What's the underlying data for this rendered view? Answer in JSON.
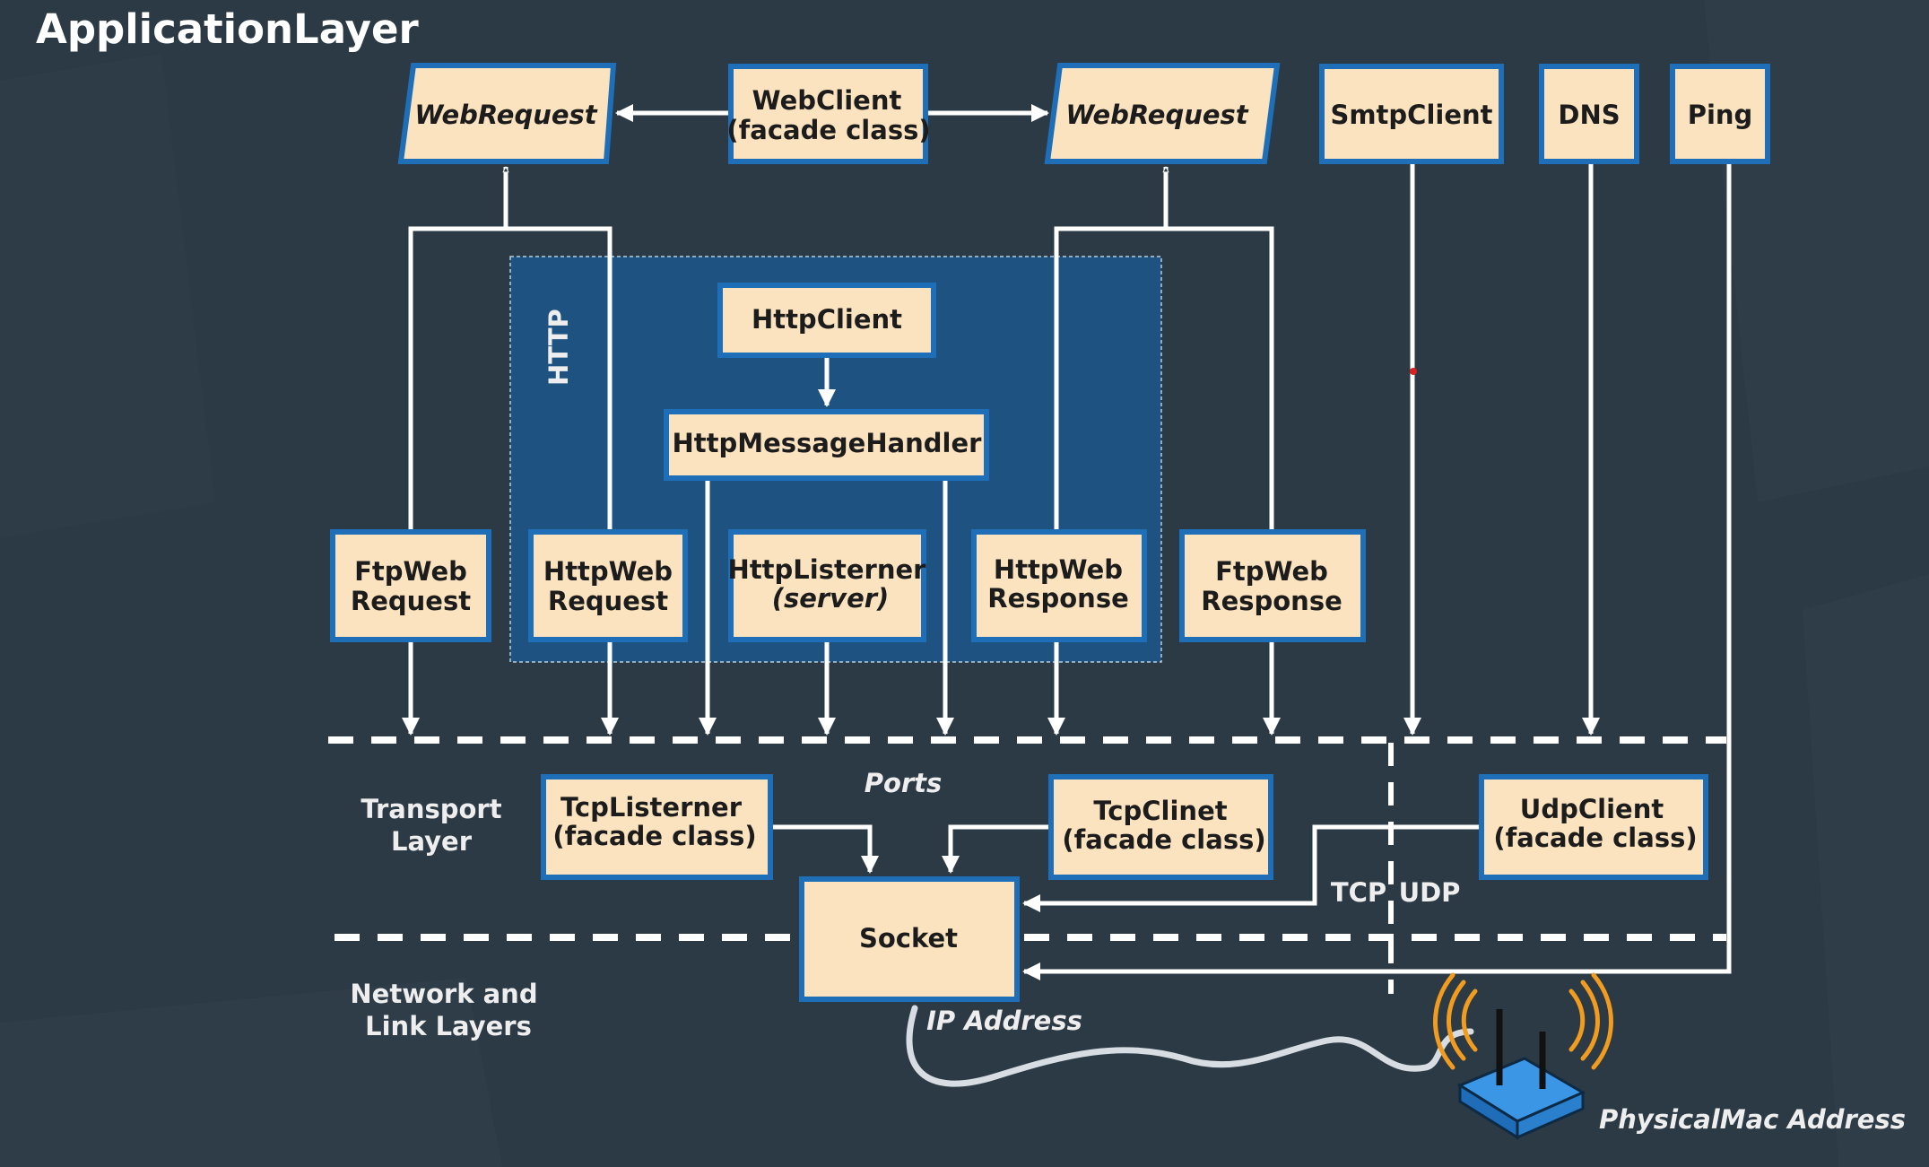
{
  "title": "ApplicationLayer",
  "http_group_label": "HTTP",
  "boxes": {
    "webrequest_left": "WebRequest",
    "webclient": [
      "WebClient",
      "(facade class)"
    ],
    "webrequest_right": "WebRequest",
    "smtpclient": "SmtpClient",
    "dns": "DNS",
    "ping": "Ping",
    "httpclient": "HttpClient",
    "httpmessagehandler": "HttpMessageHandler",
    "ftpwebrequest": [
      "FtpWeb",
      "Request"
    ],
    "httpwebrequest": [
      "HttpWeb",
      "Request"
    ],
    "httplistener": [
      "HttpListerner",
      "(server)"
    ],
    "httpwebresponse": [
      "HttpWeb",
      "Response"
    ],
    "ftpwebresponse": [
      "FtpWeb",
      "Response"
    ],
    "tcplistener": [
      "TcpListerner",
      "(facade class)"
    ],
    "tcpclient": [
      "TcpClinet",
      "(facade class)"
    ],
    "udpclient": [
      "UdpClient",
      "(facade class)"
    ],
    "socket": "Socket"
  },
  "labels": {
    "ports": "Ports",
    "transport_layer": [
      "Transport",
      "Layer"
    ],
    "network_link_layers": [
      "Network and",
      "Link Layers"
    ],
    "tcp": "TCP",
    "udp": "UDP",
    "ip_address": "IP Address",
    "physical_mac_address": "PhysicalMac Address"
  },
  "colors": {
    "background": "#2b3a44",
    "box_fill": "#fbe3bf",
    "box_border": "#1e6eb8",
    "http_group_fill": "#1d5281",
    "lines": "#ffffff",
    "router": "#2f86d6",
    "signal": "#f29c1f"
  },
  "icons": {
    "router": "wifi-router-icon"
  }
}
